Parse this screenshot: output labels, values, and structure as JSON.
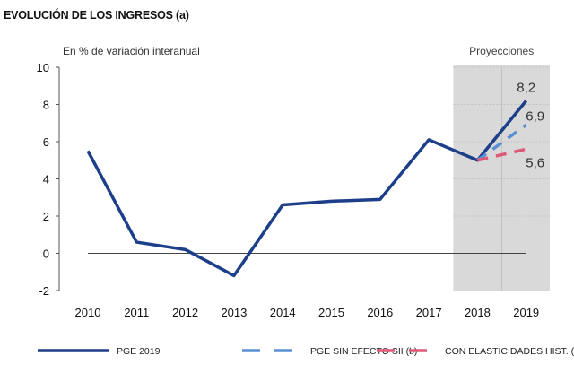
{
  "chart_data": {
    "type": "line",
    "title": "EVOLUCIÓN DE LOS INGRESOS (a)",
    "ylabel": "En % de variación interanual",
    "shaded_region_label": "Proyecciones",
    "shaded_from": "2018",
    "categories": [
      "2010",
      "2011",
      "2012",
      "2013",
      "2014",
      "2015",
      "2016",
      "2017",
      "2018",
      "2019"
    ],
    "ylim": [
      -2,
      10
    ],
    "yticks": [
      -2,
      0,
      2,
      4,
      6,
      8,
      10
    ],
    "series": [
      {
        "name": "PGE 2019",
        "style": "solid",
        "color": "#1d3f8a",
        "values": [
          5.5,
          0.6,
          0.2,
          -1.2,
          2.6,
          2.8,
          2.9,
          6.1,
          5.0,
          8.2
        ],
        "end_label": "8,2"
      },
      {
        "name": "PGE SIN EFECTO SII (b)",
        "style": "dashed",
        "color": "#5b8fd4",
        "values": [
          null,
          null,
          null,
          null,
          null,
          null,
          null,
          null,
          5.0,
          6.9
        ],
        "end_label": "6,9"
      },
      {
        "name": "CON ELASTICIDADES HIST. (c)",
        "style": "dashed",
        "color": "#dd5a78",
        "values": [
          null,
          null,
          null,
          null,
          null,
          null,
          null,
          null,
          5.0,
          5.6
        ],
        "end_label": "5,6"
      }
    ],
    "legend_position": "bottom",
    "shade_color": "#d9d9d9"
  }
}
